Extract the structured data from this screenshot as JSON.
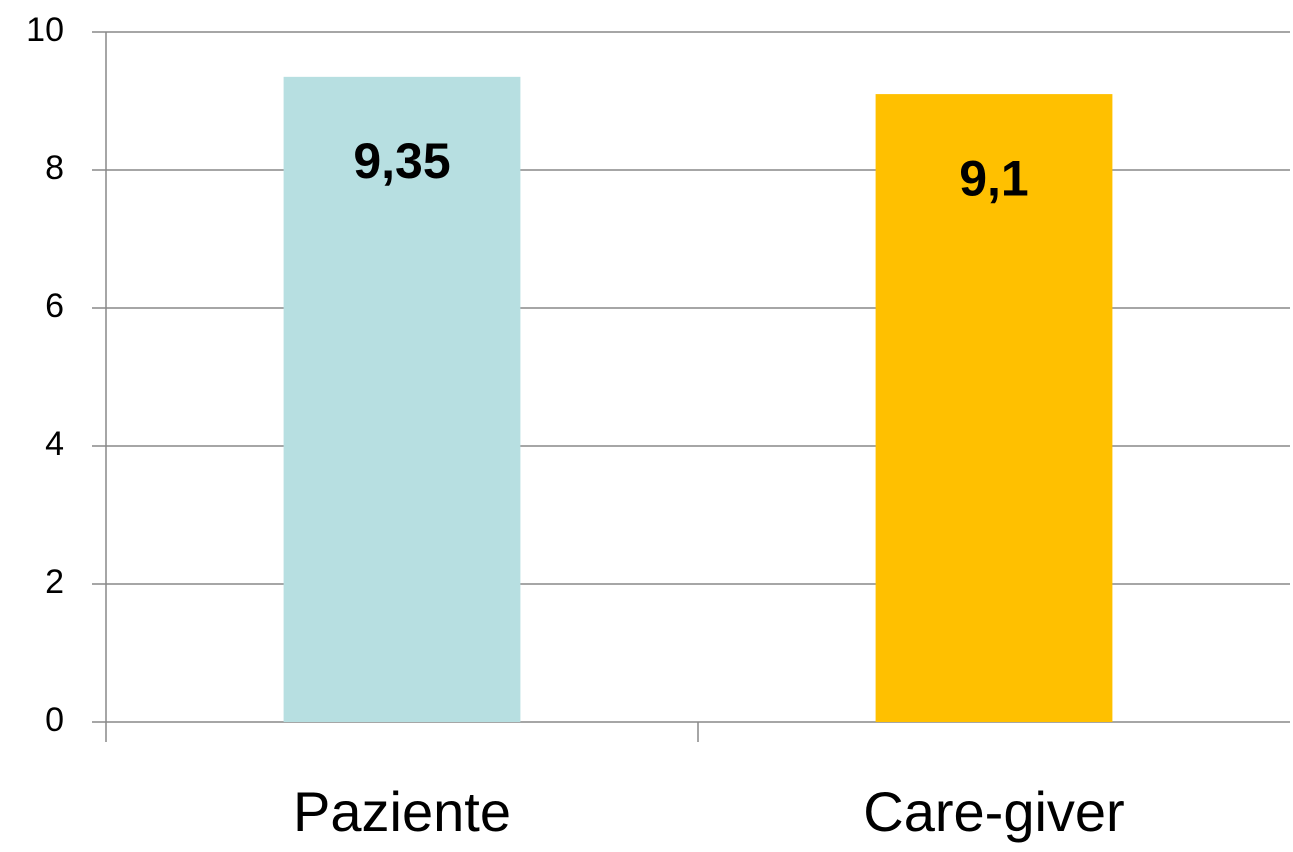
{
  "chart_data": {
    "type": "bar",
    "categories": [
      "Paziente",
      "Care-giver"
    ],
    "values": [
      9.35,
      9.1
    ],
    "value_labels": [
      "9,35",
      "9,1"
    ],
    "colors": [
      "#b7dfe1",
      "#ffc000"
    ],
    "ylim": [
      0,
      10
    ],
    "yticks": [
      0,
      2,
      4,
      6,
      8,
      10
    ],
    "grid": true
  }
}
